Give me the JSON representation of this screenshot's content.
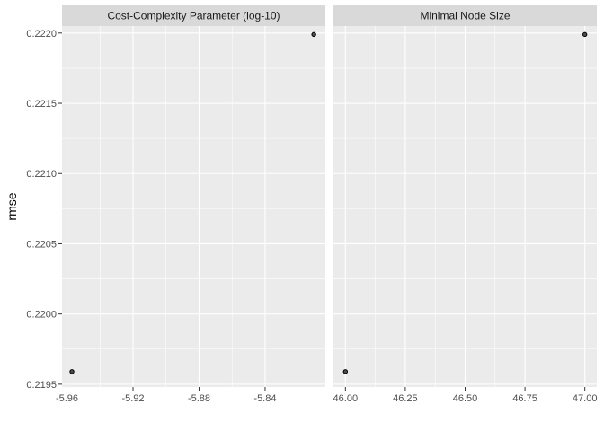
{
  "chart_data": {
    "type": "scatter",
    "ylabel": "rmse",
    "xlabel": "",
    "grid": true,
    "background": "#EBEBEB",
    "strip_color": "#D9D9D9",
    "point_color": "#000000",
    "point_fill": "#4D4D4D",
    "ylim": [
      0.21948,
      0.22205
    ],
    "y_ticks": [
      0.2195,
      0.22,
      0.2205,
      0.221,
      0.2215,
      0.222
    ],
    "y_tick_labels": [
      "0.2195",
      "0.2200",
      "0.2205",
      "0.2210",
      "0.2215",
      "0.2220"
    ],
    "panels": [
      {
        "title": "Cost-Complexity Parameter (log-10)",
        "xlim": [
          -5.963,
          -5.8035
        ],
        "x_ticks": [
          -5.96,
          -5.92,
          -5.88,
          -5.84
        ],
        "x_tick_labels": [
          "-5.96",
          "-5.92",
          "-5.88",
          "-5.84"
        ],
        "points": [
          {
            "x": -5.957,
            "y": 0.21959
          },
          {
            "x": -5.8105,
            "y": 0.22199
          }
        ]
      },
      {
        "title": "Minimal Node Size",
        "xlim": [
          45.95,
          47.05
        ],
        "x_ticks": [
          46.0,
          46.25,
          46.5,
          46.75,
          47.0
        ],
        "x_tick_labels": [
          "46.00",
          "46.25",
          "46.50",
          "46.75",
          "47.00"
        ],
        "points": [
          {
            "x": 46.0,
            "y": 0.21959
          },
          {
            "x": 47.0,
            "y": 0.22199
          }
        ]
      }
    ]
  }
}
